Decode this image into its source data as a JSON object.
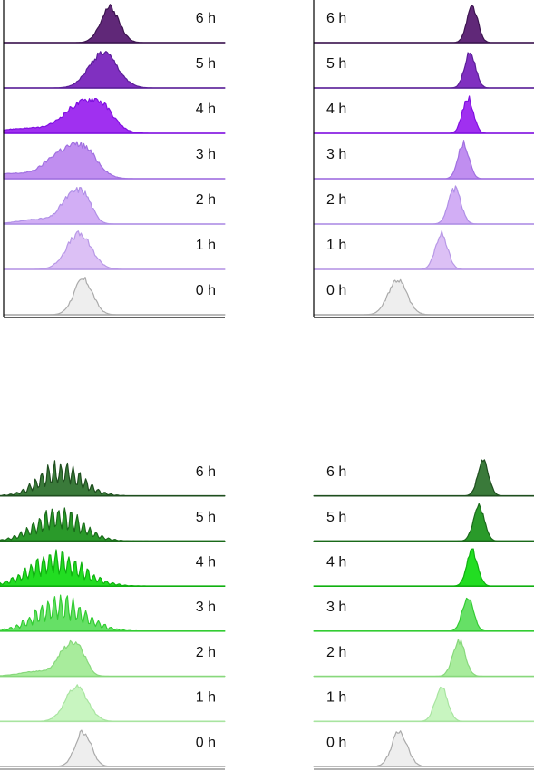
{
  "chart_data": [
    {
      "type": "area",
      "layout": "stacked-histograms",
      "colors": [
        "#eeeeee",
        "#dcc0f5",
        "#d2aef5",
        "#c08ef0",
        "#a030f0",
        "#8030c0",
        "#602878"
      ],
      "strokes": [
        "#aaaaaa",
        "#b898e6",
        "#b090e6",
        "#a070e0",
        "#8010e0",
        "#5a1e98",
        "#3c1450"
      ],
      "series": [
        {
          "name": "0 h",
          "peak_x": 0.36,
          "width": 0.06,
          "shape": "g1"
        },
        {
          "name": "1 h",
          "peak_x": 0.34,
          "width": 0.08,
          "shape": "g2"
        },
        {
          "name": "2 h",
          "peak_x": 0.34,
          "width": 0.1,
          "shape": "g3"
        },
        {
          "name": "3 h",
          "peak_x": 0.33,
          "width": 0.16,
          "shape": "g3"
        },
        {
          "name": "4 h",
          "peak_x": 0.4,
          "width": 0.16,
          "shape": "g3"
        },
        {
          "name": "5 h",
          "peak_x": 0.45,
          "width": 0.09,
          "shape": "g2"
        },
        {
          "name": "6 h",
          "peak_x": 0.48,
          "width": 0.06,
          "shape": "g2"
        }
      ]
    },
    {
      "type": "area",
      "layout": "stacked-histograms",
      "colors": [
        "#eeeeee",
        "#dcc0f5",
        "#d2aef5",
        "#c08ef0",
        "#a030f0",
        "#8030c0",
        "#602878"
      ],
      "strokes": [
        "#aaaaaa",
        "#b898e6",
        "#b090e6",
        "#a070e0",
        "#8010e0",
        "#5a1e98",
        "#3c1450"
      ],
      "series": [
        {
          "name": "0 h",
          "peak_x": 0.38,
          "width": 0.06,
          "shape": "g1"
        },
        {
          "name": "1 h",
          "peak_x": 0.58,
          "width": 0.04,
          "shape": "g2"
        },
        {
          "name": "2 h",
          "peak_x": 0.64,
          "width": 0.04,
          "shape": "g2"
        },
        {
          "name": "3 h",
          "peak_x": 0.68,
          "width": 0.035,
          "shape": "g2"
        },
        {
          "name": "4 h",
          "peak_x": 0.7,
          "width": 0.035,
          "shape": "g2"
        },
        {
          "name": "5 h",
          "peak_x": 0.71,
          "width": 0.035,
          "shape": "g2"
        },
        {
          "name": "6 h",
          "peak_x": 0.72,
          "width": 0.035,
          "shape": "g2"
        }
      ]
    },
    {
      "type": "area",
      "layout": "stacked-histograms",
      "colors": [
        "#eeeeee",
        "#c8f5c0",
        "#a8ec9c",
        "#66e066",
        "#22dd22",
        "#2a9a2a",
        "#3a7a3a"
      ],
      "strokes": [
        "#aaaaaa",
        "#a8e4a0",
        "#88d87c",
        "#33cc33",
        "#10b010",
        "#1a6a1a",
        "#1e4e1e"
      ],
      "series": [
        {
          "name": "0 h",
          "peak_x": 0.37,
          "width": 0.05,
          "shape": "g1"
        },
        {
          "name": "1 h",
          "peak_x": 0.34,
          "width": 0.07,
          "shape": "g2"
        },
        {
          "name": "2 h",
          "peak_x": 0.33,
          "width": 0.09,
          "shape": "g3"
        },
        {
          "name": "3 h",
          "peak_x": 0.27,
          "width": 0.14,
          "shape": "comb"
        },
        {
          "name": "4 h",
          "peak_x": 0.25,
          "width": 0.15,
          "shape": "comb"
        },
        {
          "name": "5 h",
          "peak_x": 0.26,
          "width": 0.13,
          "shape": "comb"
        },
        {
          "name": "6 h",
          "peak_x": 0.27,
          "width": 0.12,
          "shape": "comb"
        }
      ]
    },
    {
      "type": "area",
      "layout": "stacked-histograms",
      "colors": [
        "#eeeeee",
        "#c8f5c0",
        "#a8ec9c",
        "#66e066",
        "#22dd22",
        "#2a9a2a",
        "#3a7a3a"
      ],
      "strokes": [
        "#aaaaaa",
        "#a8e4a0",
        "#88d87c",
        "#33cc33",
        "#10b010",
        "#1a6a1a",
        "#1e4e1e"
      ],
      "series": [
        {
          "name": "0 h",
          "peak_x": 0.39,
          "width": 0.05,
          "shape": "g1"
        },
        {
          "name": "1 h",
          "peak_x": 0.58,
          "width": 0.04,
          "shape": "g2"
        },
        {
          "name": "2 h",
          "peak_x": 0.66,
          "width": 0.04,
          "shape": "g2"
        },
        {
          "name": "3 h",
          "peak_x": 0.7,
          "width": 0.035,
          "shape": "g2"
        },
        {
          "name": "4 h",
          "peak_x": 0.72,
          "width": 0.035,
          "shape": "g2"
        },
        {
          "name": "5 h",
          "peak_x": 0.75,
          "width": 0.035,
          "shape": "g2"
        },
        {
          "name": "6 h",
          "peak_x": 0.77,
          "width": 0.035,
          "shape": "g2"
        }
      ]
    }
  ]
}
